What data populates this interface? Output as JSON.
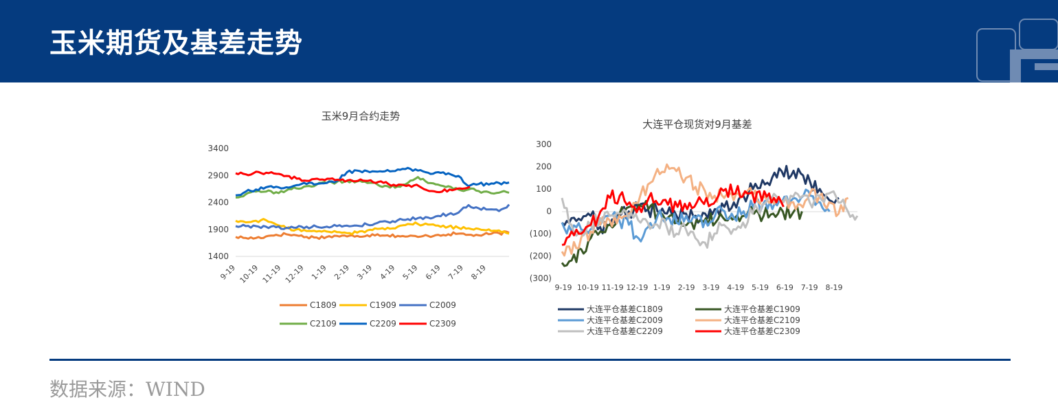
{
  "header": {
    "title": "玉米期货及基差走势"
  },
  "footer": {
    "source": "数据来源：WIND"
  },
  "colors": {
    "header_bg": "#053b7f",
    "rule": "#053b7f"
  },
  "chart_data": [
    {
      "type": "line",
      "title": "玉米9月合约走势",
      "x_ticks": [
        "9-19",
        "10-19",
        "11-19",
        "12-19",
        "1-19",
        "2-19",
        "3-19",
        "4-19",
        "5-19",
        "6-19",
        "7-19",
        "8-19"
      ],
      "y_ticks": [
        "3400",
        "2900",
        "2400",
        "1900",
        "1400"
      ],
      "ylim": [
        1400,
        3400
      ],
      "legend_position": "bottom",
      "series": [
        {
          "name": "C1809",
          "color": "#ed7d31",
          "values": [
            1760,
            1740,
            1740,
            1770,
            1800,
            1810,
            1790,
            1760,
            1750,
            1760,
            1780,
            1770,
            1780,
            1790,
            1810,
            1790,
            1780,
            1770,
            1760,
            1780,
            1800,
            1810,
            1820,
            1800,
            1790,
            1810,
            1830,
            1840
          ]
        },
        {
          "name": "C1909",
          "color": "#ffc000",
          "values": [
            2060,
            2030,
            2060,
            2070,
            1990,
            1920,
            1900,
            1870,
            1860,
            1860,
            1850,
            1830,
            1840,
            1880,
            1910,
            1930,
            1950,
            2000,
            2000,
            1990,
            1970,
            1950,
            1930,
            1920,
            1910,
            1900,
            1880,
            1820
          ]
        },
        {
          "name": "C2009",
          "color": "#4472c4",
          "values": [
            1960,
            1960,
            1960,
            1950,
            1940,
            1930,
            1930,
            1950,
            1950,
            1950,
            1960,
            1970,
            1970,
            1990,
            2020,
            2040,
            2070,
            2090,
            2110,
            2120,
            2150,
            2180,
            2210,
            2350,
            2290,
            2270,
            2240,
            2360
          ]
        },
        {
          "name": "C2109",
          "color": "#70ad47",
          "values": [
            2490,
            2550,
            2600,
            2600,
            2590,
            2620,
            2660,
            2700,
            2730,
            2760,
            2780,
            2800,
            2790,
            2760,
            2730,
            2700,
            2700,
            2760,
            2870,
            2760,
            2730,
            2700,
            2640,
            2640,
            2610,
            2590,
            2580,
            2580
          ]
        },
        {
          "name": "C2209",
          "color": "#0563c1",
          "values": [
            2530,
            2600,
            2640,
            2680,
            2690,
            2680,
            2720,
            2740,
            2740,
            2760,
            2800,
            2960,
            2990,
            2980,
            2970,
            3000,
            3010,
            3040,
            2990,
            2950,
            2960,
            2940,
            2890,
            2700,
            2740,
            2730,
            2760,
            2770
          ]
        },
        {
          "name": "C2309",
          "color": "#ff0000",
          "values": [
            2940,
            2920,
            2970,
            2950,
            2930,
            2890,
            2840,
            2800,
            2840,
            2840,
            2820,
            2810,
            2800,
            2800,
            2780,
            2740,
            2730,
            2720,
            2700,
            2610,
            2590,
            2640,
            2660,
            2690
          ]
        }
      ]
    },
    {
      "type": "line",
      "title": "大连平仓现货对9月基差",
      "x_ticks": [
        "9-19",
        "10-19",
        "11-19",
        "12-19",
        "1-19",
        "2-19",
        "3-19",
        "4-19",
        "5-19",
        "6-19",
        "7-19",
        "8-19"
      ],
      "y_ticks": [
        "300",
        "200",
        "100",
        "0",
        "(100)",
        "(200)",
        "(300)"
      ],
      "ylim": [
        -300,
        300
      ],
      "legend_position": "bottom",
      "series": [
        {
          "name": "大连平仓基差C1809",
          "color": "#1f3864",
          "values": [
            -50,
            -30,
            -40,
            -20,
            -70,
            -60,
            -20,
            0,
            10,
            10,
            0,
            -10,
            -20,
            -10,
            -20,
            -10,
            10,
            20,
            40,
            70,
            100,
            140,
            150,
            180,
            160,
            170,
            130,
            100,
            50,
            60
          ]
        },
        {
          "name": "大连平仓基差C1909",
          "color": "#375623",
          "values": [
            -230,
            -220,
            -170,
            -120,
            -90,
            -60,
            -10,
            20,
            30,
            10,
            -10,
            -30,
            -50,
            -60,
            -40,
            -30,
            -50,
            -40,
            -30,
            -20,
            -10,
            -20,
            -10,
            0,
            -10,
            0
          ]
        },
        {
          "name": "大连平仓基差C2009",
          "color": "#5b9bd5",
          "values": [
            -50,
            -90,
            -80,
            -80,
            -60,
            -20,
            -40,
            -60,
            -120,
            -70,
            -20,
            -30,
            -50,
            -20,
            -30,
            -40,
            -20,
            0,
            -30,
            0,
            20,
            30,
            10,
            40,
            50,
            60,
            70,
            40,
            0
          ]
        },
        {
          "name": "大连平仓基差C2109",
          "color": "#f4b183",
          "values": [
            -180,
            -190,
            -120,
            -90,
            -60,
            -40,
            -20,
            -10,
            40,
            120,
            190,
            210,
            180,
            150,
            110,
            90,
            70,
            60,
            50,
            80,
            70,
            60,
            50,
            40,
            40,
            30,
            80,
            70,
            40,
            -10,
            60
          ]
        },
        {
          "name": "大连平仓基差C2209",
          "color": "#bfbfbf",
          "values": [
            60,
            -60,
            -90,
            -60,
            -30,
            -20,
            -10,
            -30,
            -40,
            -50,
            -60,
            -70,
            -100,
            -80,
            -120,
            -140,
            -100,
            -60,
            -80,
            -50,
            -10,
            30,
            60,
            40,
            70,
            60,
            40,
            70,
            80,
            40,
            0,
            -20
          ]
        },
        {
          "name": "大连平仓基差C2309",
          "color": "#ff0000",
          "values": [
            -150,
            -90,
            -100,
            -60,
            0,
            60,
            70,
            40,
            20,
            60,
            30,
            30,
            20,
            10,
            40,
            60,
            50,
            100,
            80,
            90,
            40,
            90,
            60,
            20
          ]
        }
      ]
    }
  ]
}
